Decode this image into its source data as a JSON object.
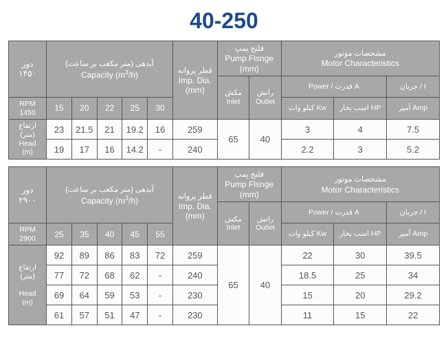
{
  "title": "40-250",
  "headers": {
    "rpm_ar": "دور",
    "rpm_en": "RPM",
    "cap_ar": "آبدهی (متر مکعب بر ساعت)",
    "cap_en_a": "Capacity (m",
    "cap_en_b": "/h)",
    "imp_ar": "قطر پروانه",
    "imp_en": "Imp. Dia.",
    "mm": "(mm)",
    "flange_ar": "فلنج پمپ",
    "flange_en": "Pump Flsnge",
    "inlet_ar": "مکش",
    "inlet_en": "Inlet",
    "outlet_ar": "رانش",
    "outlet_en": "Outlet",
    "motor_ar": "مشخصات موتور",
    "motor_en": "Motor Characteristics",
    "power_label": "Power / قدرت A",
    "kw": "کیلو وات Kw",
    "hp": "اسب بخار HP",
    "amp_label": "جریان / I",
    "amp": "آمپر   Amp",
    "head_ar": "ارتفاع",
    "head_unit": "(متر)",
    "head_en": "Head",
    "head_m": "(m)"
  },
  "table1": {
    "rpm_ar_val": "۱۴۵۰",
    "rpm_val": "1450",
    "caps": [
      "15",
      "20",
      "22",
      "25",
      "30"
    ],
    "inlet": "65",
    "outlet": "40",
    "rows": [
      {
        "heads": [
          "23",
          "21.5",
          "21",
          "19.2",
          "16"
        ],
        "imp": "259",
        "kw": "3",
        "hp": "4",
        "amp": "7.5"
      },
      {
        "heads": [
          "19",
          "17",
          "16",
          "14.2",
          "-"
        ],
        "imp": "240",
        "kw": "2.2",
        "hp": "3",
        "amp": "5.2"
      }
    ]
  },
  "table2": {
    "rpm_ar_val": "۲۹۰۰",
    "rpm_val": "2900",
    "caps": [
      "25",
      "35",
      "40",
      "45",
      "55"
    ],
    "inlet": "65",
    "outlet": "40",
    "rows": [
      {
        "heads": [
          "92",
          "89",
          "86",
          "83",
          "72"
        ],
        "imp": "259",
        "kw": "22",
        "hp": "30",
        "amp": "39.5"
      },
      {
        "heads": [
          "77",
          "72",
          "68",
          "62",
          "-"
        ],
        "imp": "240",
        "kw": "18.5",
        "hp": "25",
        "amp": "34"
      },
      {
        "heads": [
          "69",
          "64",
          "59",
          "53",
          "-"
        ],
        "imp": "230",
        "kw": "15",
        "hp": "20",
        "amp": "29.2"
      },
      {
        "heads": [
          "61",
          "57",
          "51",
          "47",
          "-"
        ],
        "imp": "230",
        "kw": "11",
        "hp": "15",
        "amp": "22"
      }
    ]
  }
}
